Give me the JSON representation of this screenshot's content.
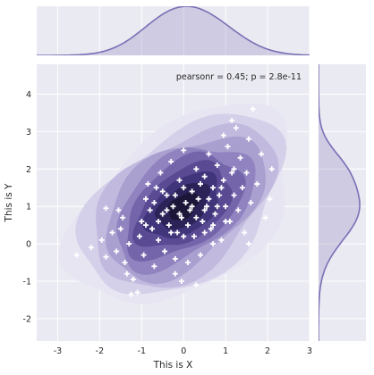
{
  "chart_data": {
    "type": "scatter",
    "title": "",
    "xlabel": "This is X",
    "ylabel": "This is Y",
    "xlim": [
      -3.5,
      3
    ],
    "ylim": [
      -2.6,
      4.8
    ],
    "xticks": [
      -3,
      -2,
      -1,
      0,
      1,
      2,
      3
    ],
    "yticks": [
      -2,
      -1,
      0,
      1,
      2,
      3,
      4
    ],
    "annotation": "pearsonr = 0.45; p = 2.8e-11",
    "marker": "plus",
    "grid": true,
    "colors": {
      "background": "#eaeaf2",
      "grid": "#ffffff",
      "kde_line": "#7b6fb5",
      "kde_fill": "#7b6fb5",
      "kde_levels": [
        "#e8e5f3",
        "#d5d0e9",
        "#c1b9de",
        "#aaa0d0",
        "#9083bf",
        "#7465ab",
        "#594a93",
        "#40347a",
        "#2b2258",
        "#1c1638"
      ],
      "points": "#ffffff"
    },
    "kde": {
      "center": [
        0.0,
        1.0
      ],
      "sd": [
        0.98,
        0.98
      ],
      "rho": 0.45
    },
    "points": [
      [
        -2.55,
        -0.3
      ],
      [
        -2.2,
        -0.1
      ],
      [
        -1.95,
        0.1
      ],
      [
        -1.85,
        -0.35
      ],
      [
        -1.6,
        -0.2
      ],
      [
        -1.7,
        0.3
      ],
      [
        -1.5,
        0.4
      ],
      [
        -1.4,
        -0.5
      ],
      [
        -1.35,
        -0.8
      ],
      [
        -1.3,
        0.0
      ],
      [
        -1.85,
        0.95
      ],
      [
        -1.2,
        -0.95
      ],
      [
        -1.1,
        -1.3
      ],
      [
        -1.25,
        -1.35
      ],
      [
        -1.05,
        0.2
      ],
      [
        -1.0,
        0.6
      ],
      [
        -0.95,
        -0.3
      ],
      [
        -0.9,
        1.2
      ],
      [
        -0.85,
        1.6
      ],
      [
        -0.8,
        0.9
      ],
      [
        -0.75,
        0.4
      ],
      [
        -0.7,
        -0.6
      ],
      [
        -0.65,
        1.5
      ],
      [
        -0.6,
        0.1
      ],
      [
        -0.55,
        1.9
      ],
      [
        -0.5,
        0.8
      ],
      [
        -0.45,
        -0.2
      ],
      [
        -0.4,
        1.3
      ],
      [
        -0.35,
        0.5
      ],
      [
        -0.3,
        2.2
      ],
      [
        -0.25,
        1.0
      ],
      [
        -0.2,
        -0.8
      ],
      [
        -0.15,
        0.3
      ],
      [
        -0.1,
        1.7
      ],
      [
        -0.05,
        0.7
      ],
      [
        0.0,
        2.5
      ],
      [
        0.05,
        1.1
      ],
      [
        0.1,
        -0.5
      ],
      [
        0.15,
        0.9
      ],
      [
        0.2,
        1.4
      ],
      [
        0.25,
        0.2
      ],
      [
        0.3,
        2.0
      ],
      [
        0.35,
        1.2
      ],
      [
        0.4,
        -0.3
      ],
      [
        0.45,
        0.6
      ],
      [
        0.5,
        1.8
      ],
      [
        0.55,
        1.0
      ],
      [
        0.6,
        2.4
      ],
      [
        0.65,
        0.4
      ],
      [
        0.7,
        1.5
      ],
      [
        0.75,
        0.8
      ],
      [
        0.8,
        2.1
      ],
      [
        0.85,
        1.3
      ],
      [
        0.9,
        0.1
      ],
      [
        0.95,
        1.7
      ],
      [
        1.0,
        1.0
      ],
      [
        1.05,
        2.6
      ],
      [
        1.1,
        0.6
      ],
      [
        1.15,
        1.9
      ],
      [
        1.2,
        1.3
      ],
      [
        1.25,
        3.1
      ],
      [
        1.3,
        0.9
      ],
      [
        1.35,
        2.3
      ],
      [
        1.4,
        1.5
      ],
      [
        1.45,
        0.3
      ],
      [
        1.5,
        1.9
      ],
      [
        1.55,
        2.8
      ],
      [
        1.6,
        1.1
      ],
      [
        1.65,
        3.6
      ],
      [
        1.75,
        1.6
      ],
      [
        1.85,
        2.4
      ],
      [
        1.95,
        0.7
      ],
      [
        2.05,
        1.2
      ],
      [
        2.1,
        2.0
      ],
      [
        -0.7,
        1.1
      ],
      [
        -0.6,
        0.6
      ],
      [
        -0.4,
        0.9
      ],
      [
        -0.3,
        0.3
      ],
      [
        -0.2,
        1.3
      ],
      [
        -0.1,
        0.8
      ],
      [
        0.0,
        1.5
      ],
      [
        0.1,
        0.5
      ],
      [
        0.2,
        1.0
      ],
      [
        0.3,
        0.7
      ],
      [
        0.4,
        1.6
      ],
      [
        0.5,
        0.9
      ],
      [
        0.6,
        1.2
      ],
      [
        0.7,
        0.5
      ],
      [
        0.8,
        1.0
      ],
      [
        0.9,
        1.5
      ],
      [
        1.0,
        0.6
      ],
      [
        -0.9,
        0.5
      ],
      [
        -0.5,
        1.4
      ],
      [
        0.0,
        0.2
      ],
      [
        0.5,
        0.3
      ],
      [
        -1.45,
        0.7
      ],
      [
        -1.55,
        0.9
      ],
      [
        0.95,
        2.9
      ],
      [
        1.15,
        3.3
      ],
      [
        1.55,
        0.0
      ],
      [
        0.7,
        0.0
      ],
      [
        -0.2,
        -0.4
      ],
      [
        1.2,
        2.0
      ],
      [
        -0.05,
        -1.0
      ],
      [
        0.3,
        -1.1
      ]
    ]
  }
}
